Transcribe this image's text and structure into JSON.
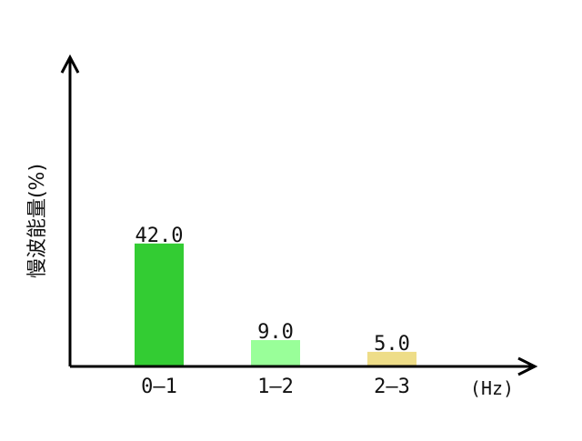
{
  "chart_data": {
    "type": "bar",
    "categories": [
      "0–1",
      "1–2",
      "2–3"
    ],
    "values": [
      42.0,
      9.0,
      5.0
    ],
    "value_labels": [
      "42.0",
      "9.0",
      "5.0"
    ],
    "bar_colors": [
      "#33cc33",
      "#99ff99",
      "#eedd88"
    ],
    "ylabel": "慢波能量(%)",
    "xunit": "(Hz)",
    "ylim": [
      0,
      105
    ],
    "grid": false,
    "axis_color": "#000000"
  }
}
